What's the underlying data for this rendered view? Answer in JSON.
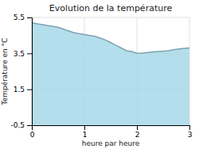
{
  "chart_data": {
    "type": "area",
    "title": "Evolution de la température",
    "x_label": "heure par heure",
    "y_label": "Température en °C",
    "color": "#a8d8ea",
    "grid": true,
    "xlim": [
      0,
      3
    ],
    "ylim": [
      -0.5,
      5.5
    ],
    "xticks": [
      0,
      1,
      2,
      3
    ],
    "yticks": [
      -0.5,
      1.5,
      3.5,
      5.5
    ],
    "x": [
      0,
      0.1,
      0.2,
      0.3,
      0.4,
      0.5,
      0.6,
      0.7,
      0.8,
      0.9,
      1.0,
      1.1,
      1.2,
      1.3,
      1.4,
      1.5,
      1.6,
      1.7,
      1.8,
      1.9,
      2.0,
      2.1,
      2.2,
      2.3,
      2.4,
      2.5,
      2.6,
      2.7,
      2.8,
      2.9,
      3.0
    ],
    "values": [
      5.2,
      5.15,
      5.1,
      5.05,
      5.0,
      4.95,
      4.85,
      4.75,
      4.65,
      4.6,
      4.55,
      4.5,
      4.45,
      4.35,
      4.25,
      4.1,
      3.95,
      3.8,
      3.65,
      3.6,
      3.5,
      3.52,
      3.55,
      3.58,
      3.6,
      3.62,
      3.65,
      3.7,
      3.75,
      3.78,
      3.8
    ]
  }
}
